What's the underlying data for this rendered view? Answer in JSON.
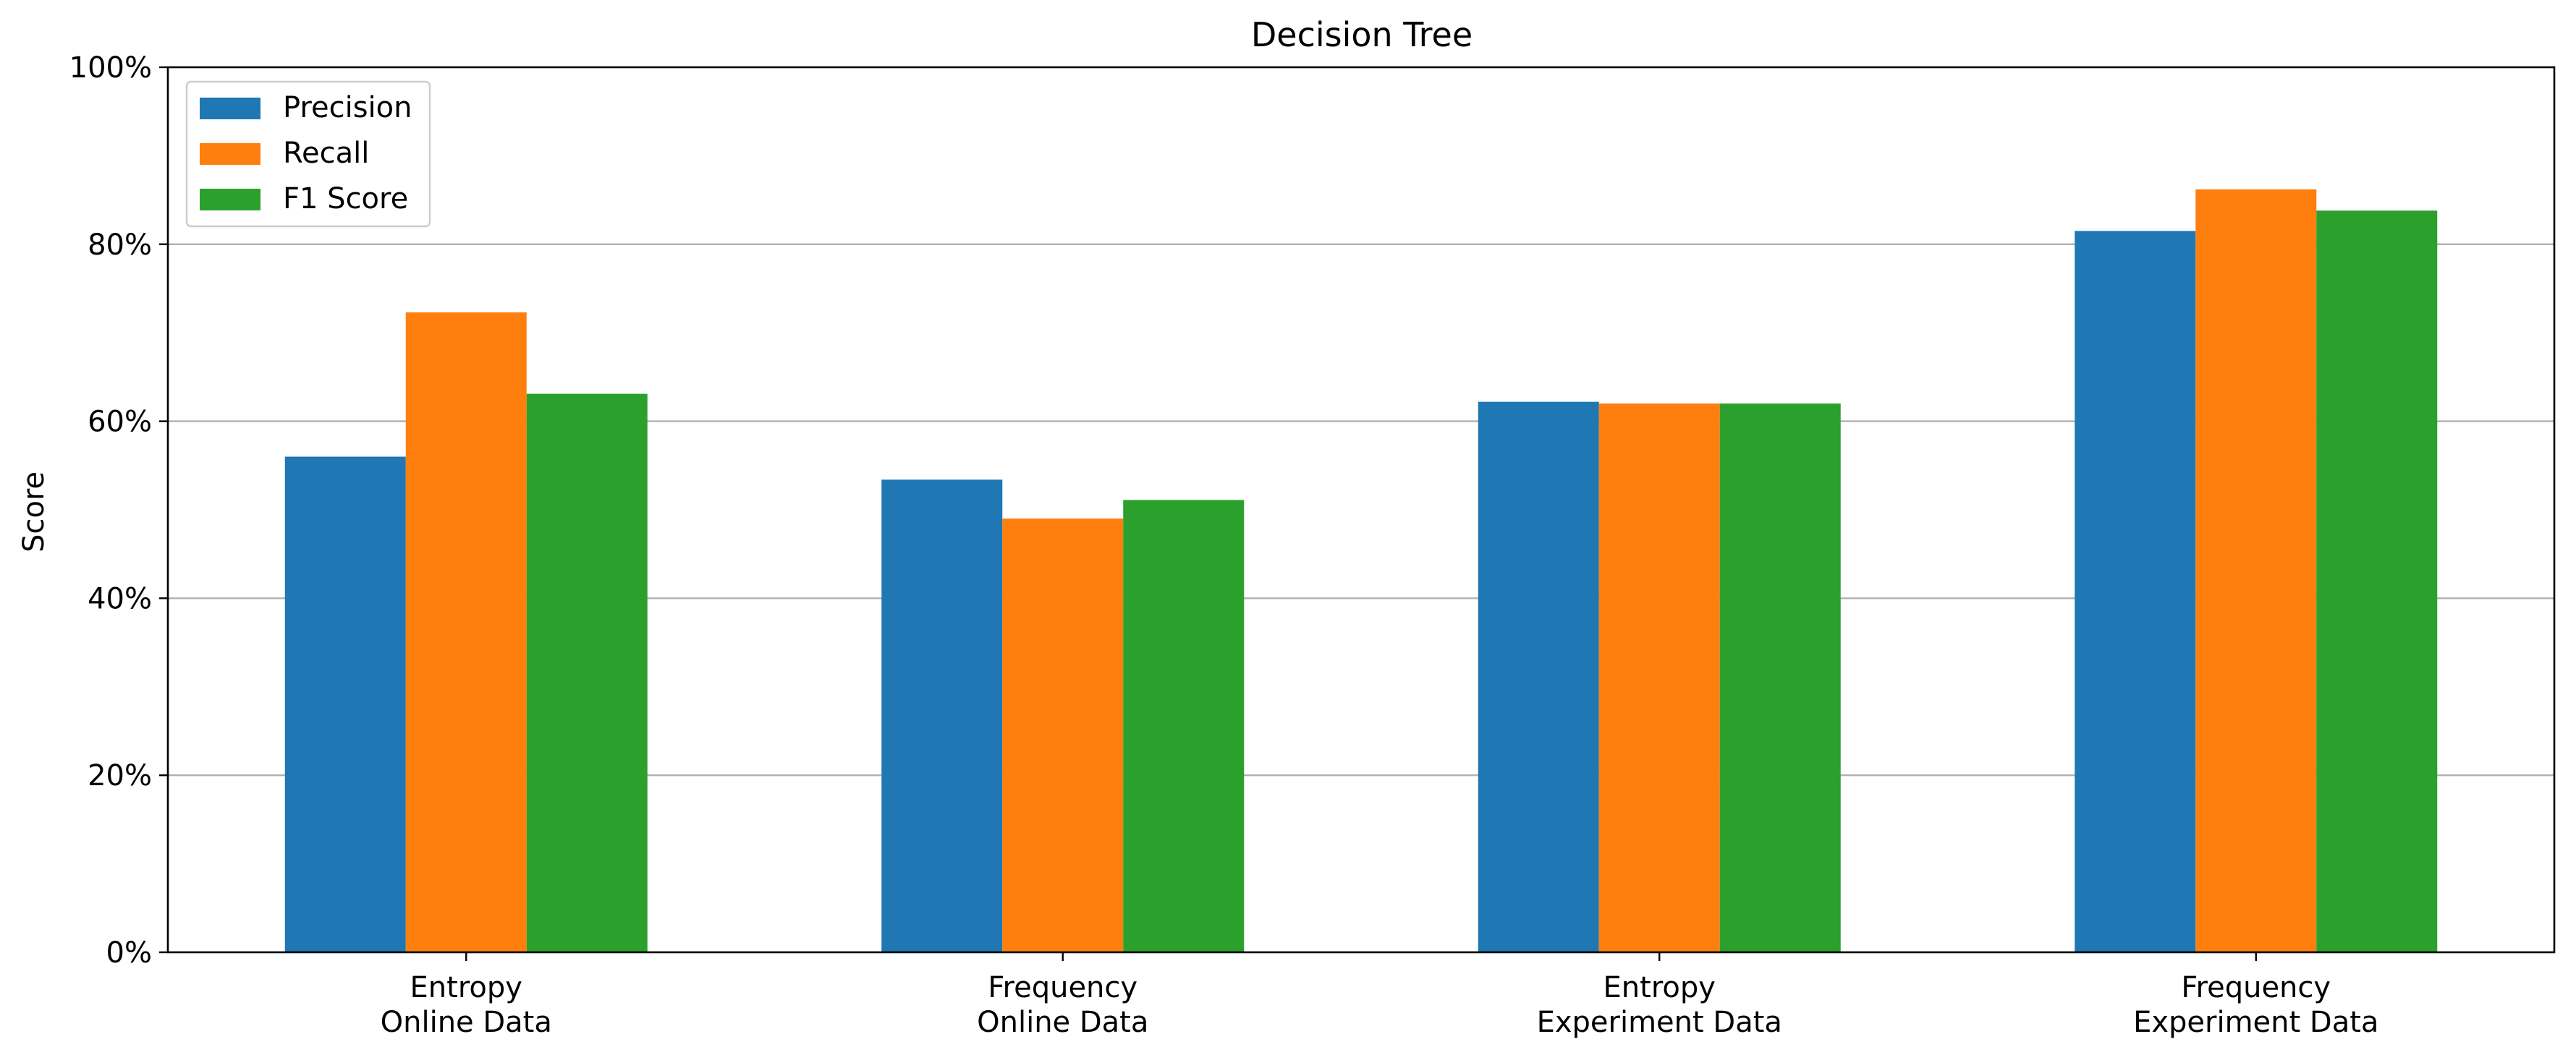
{
  "chart_data": {
    "type": "bar",
    "title": "Decision Tree",
    "xlabel": "",
    "ylabel": "Score",
    "ylim": [
      0,
      1
    ],
    "yticks": [
      0,
      0.2,
      0.4,
      0.6,
      0.8,
      1.0
    ],
    "ytick_labels": [
      "0%",
      "20%",
      "40%",
      "60%",
      "80%",
      "100%"
    ],
    "categories": [
      [
        "Entropy",
        "Online Data"
      ],
      [
        "Frequency",
        "Online Data"
      ],
      [
        "Entropy",
        "Experiment Data"
      ],
      [
        "Frequency",
        "Experiment Data"
      ]
    ],
    "series": [
      {
        "name": "Precision",
        "color": "#1f77b4",
        "values": [
          0.56,
          0.534,
          0.622,
          0.815
        ]
      },
      {
        "name": "Recall",
        "color": "#ff7f0e",
        "values": [
          0.723,
          0.49,
          0.62,
          0.862
        ]
      },
      {
        "name": "F1 Score",
        "color": "#2ca02c",
        "values": [
          0.631,
          0.511,
          0.62,
          0.838
        ]
      }
    ],
    "grid": "y",
    "legend_position": "top-left"
  }
}
